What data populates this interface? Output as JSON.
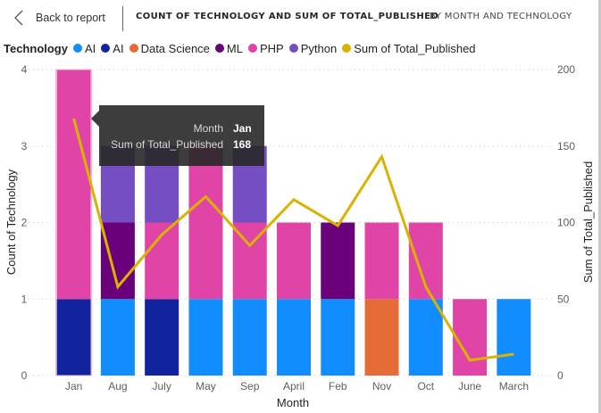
{
  "header": {
    "back_label": "Back to report",
    "title": "COUNT OF TECHNOLOGY AND SUM OF TOTAL_PUBLISHED",
    "subtitle": "BY MONTH AND TECHNOLOGY"
  },
  "legend": {
    "title": "Technology",
    "items": [
      {
        "label": "AI",
        "color": "#118DFF"
      },
      {
        "label": "AI",
        "color": "#12239E"
      },
      {
        "label": "Data Science",
        "color": "#E66C37"
      },
      {
        "label": "ML",
        "color": "#6B007B"
      },
      {
        "label": "PHP",
        "color": "#E044A7"
      },
      {
        "label": "Python",
        "color": "#744EC2"
      },
      {
        "label": "Sum of Total_Published",
        "color": "#D9B300"
      }
    ]
  },
  "tooltip": {
    "rows": [
      {
        "label": "Month",
        "value": "Jan"
      },
      {
        "label": "Sum of Total_Published",
        "value": "168"
      }
    ]
  },
  "chart_data": {
    "type": "bar",
    "subtype": "stacked-column-with-line",
    "title": "Count of Technology and Sum of Total_Published by Month and Technology",
    "xlabel": "Month",
    "ylabel": "Count of Technology",
    "y2label": "Sum of Total_Published",
    "ylim": [
      0,
      4
    ],
    "y2lim": [
      0,
      200
    ],
    "yticks": [
      "0",
      "1",
      "2",
      "3",
      "4"
    ],
    "y2ticks": [
      "0",
      "50",
      "100",
      "150",
      "200"
    ],
    "grid": true,
    "legend_position": "top-left",
    "categories": [
      "Jan",
      "Aug",
      "July",
      "May",
      "Sep",
      "April",
      "Feb",
      "Nov",
      "Oct",
      "June",
      "March"
    ],
    "series": [
      {
        "name": "AI",
        "color": "#118DFF",
        "values": [
          0,
          1,
          0,
          1,
          1,
          1,
          1,
          0,
          1,
          0,
          1
        ]
      },
      {
        "name": "AI ",
        "color": "#12239E",
        "values": [
          1,
          0,
          1,
          0,
          0,
          0,
          0,
          0,
          0,
          0,
          0
        ]
      },
      {
        "name": "Data Science",
        "color": "#E66C37",
        "values": [
          0,
          0,
          0,
          0,
          0,
          0,
          0,
          1,
          0,
          0,
          0
        ]
      },
      {
        "name": "ML",
        "color": "#6B007B",
        "values": [
          0,
          1,
          0,
          0,
          0,
          0,
          1,
          0,
          0,
          0,
          0
        ]
      },
      {
        "name": "PHP",
        "color": "#E044A7",
        "values": [
          3,
          0,
          1,
          2,
          1,
          1,
          0,
          1,
          1,
          1,
          0
        ]
      },
      {
        "name": "Python",
        "color": "#744EC2",
        "values": [
          0,
          1,
          1,
          0,
          1,
          0,
          0,
          0,
          0,
          0,
          0
        ]
      }
    ],
    "line_series": {
      "name": "Sum of Total_Published",
      "color": "#D9B300",
      "axis": "secondary",
      "values": [
        168,
        58,
        92,
        117,
        85,
        115,
        98,
        143,
        58,
        10,
        14
      ]
    }
  }
}
